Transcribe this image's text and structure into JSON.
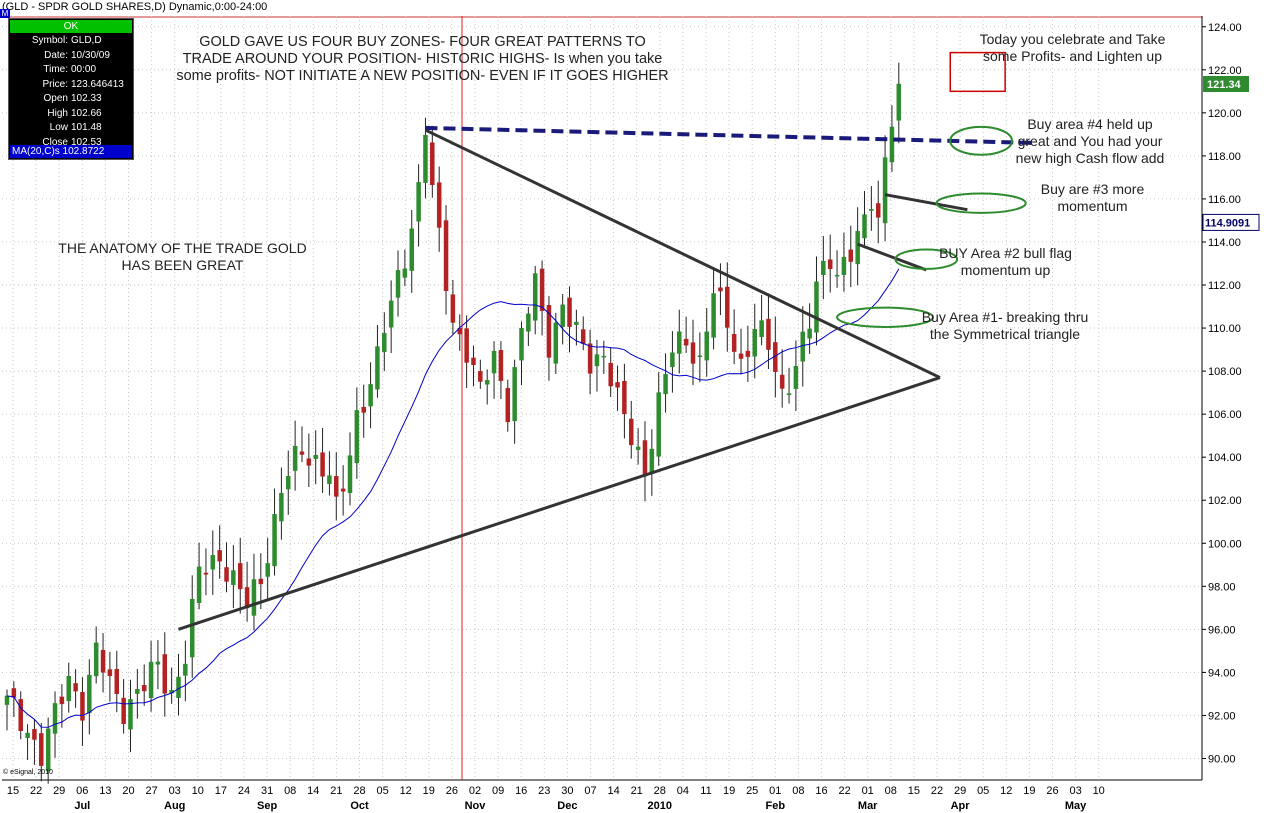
{
  "window": {
    "title": "(GLD - SPDR GOLD SHARES,D) Dynamic,0:00-24:00",
    "corner_label": "M",
    "copyright": "© eSignal, 2010"
  },
  "info_box": {
    "status": "OK",
    "rows": [
      {
        "label": "Symbol:",
        "value": "GLD,D"
      },
      {
        "label": "Date:",
        "value": "10/30/09"
      },
      {
        "label": "Time:",
        "value": "00:00"
      },
      {
        "label": "Price:",
        "value": "123.646413"
      },
      {
        "label": "Open",
        "value": "102.33"
      },
      {
        "label": "High",
        "value": "102.66"
      },
      {
        "label": "Low",
        "value": "101.48"
      },
      {
        "label": "Close",
        "value": "102.53"
      }
    ],
    "ma_label": "MA(20,C)s 102.8722"
  },
  "annotations": {
    "headline": "GOLD GAVE US FOUR BUY ZONES- FOUR GREAT PATTERNS TO\nTRADE AROUND YOUR POSITION- HISTORIC HIGHS- Is when you take\nsome profits- NOT INITIATE A NEW POSITION- EVEN IF IT GOES HIGHER",
    "anatomy": "THE ANATOMY OF THE TRADE GOLD\nHAS BEEN GREAT",
    "today": "Today you celebrate and Take\nsome Profits- and Lighten up",
    "area4": "Buy area #4 held up\ngreat and You had your\nnew high Cash flow add",
    "area3": "Buy are #3 more\nmomentum",
    "area2": "BUY Area #2 bull flag\nmomentum up",
    "area1": "Buy Area #1- breaking thru\nthe Symmetrical triangle"
  },
  "chart_data": {
    "type": "candlestick",
    "title": "(GLD - SPDR GOLD SHARES,D) Dynamic,0:00-24:00",
    "ylim": [
      89,
      124.5
    ],
    "y_ticks": [
      "124.00",
      "122.00",
      "120.00",
      "118.00",
      "116.00",
      "114.00",
      "112.00",
      "110.00",
      "108.00",
      "106.00",
      "104.00",
      "102.00",
      "100.00",
      "98.00",
      "96.00",
      "94.00",
      "92.00",
      "90.00"
    ],
    "price_labels": {
      "last": "121.34",
      "ma": "114.9091",
      "last_value": 121.34,
      "ma_value": 114.9091
    },
    "colors": {
      "up": "#2e8b2e",
      "down": "#b22222",
      "ma": "#0000cc",
      "trendline": "#333333",
      "resistance": "#1a1a7a",
      "ellipse": "#2e8b2e",
      "highlight": "#cc0000"
    },
    "day_ticks": [
      "15",
      "22",
      "29",
      "06",
      "13",
      "20",
      "27",
      "03",
      "10",
      "17",
      "24",
      "31",
      "08",
      "14",
      "21",
      "28",
      "05",
      "12",
      "19",
      "26",
      "02",
      "09",
      "16",
      "23",
      "30",
      "07",
      "14",
      "21",
      "28",
      "04",
      "11",
      "19",
      "25",
      "01",
      "08",
      "16",
      "22",
      "01",
      "08",
      "15",
      "22",
      "29",
      "05",
      "12",
      "19",
      "26",
      "03",
      "10"
    ],
    "month_labels": [
      {
        "label": "Jul",
        "tick": 3
      },
      {
        "label": "Aug",
        "tick": 7
      },
      {
        "label": "Sep",
        "tick": 11
      },
      {
        "label": "Oct",
        "tick": 15
      },
      {
        "label": "Nov",
        "tick": 20
      },
      {
        "label": "Dec",
        "tick": 24
      },
      {
        "label": "2010",
        "tick": 28
      },
      {
        "label": "Feb",
        "tick": 33
      },
      {
        "label": "Mar",
        "tick": 37
      },
      {
        "label": "Apr",
        "tick": 41
      },
      {
        "label": "May",
        "tick": 46
      }
    ],
    "date_marker_tick": 20,
    "anchors": [
      [
        0,
        92.5
      ],
      [
        3,
        91.5
      ],
      [
        5,
        90.2
      ],
      [
        7,
        91.8
      ],
      [
        9,
        93.8
      ],
      [
        11,
        92.6
      ],
      [
        13,
        94.8
      ],
      [
        15,
        93.4
      ],
      [
        17,
        92.5
      ],
      [
        20,
        93.3
      ],
      [
        22,
        94.2
      ],
      [
        24,
        93.2
      ],
      [
        26,
        94.8
      ],
      [
        28,
        98.5
      ],
      [
        31,
        99.6
      ],
      [
        33,
        98.2
      ],
      [
        35,
        97.0
      ],
      [
        37,
        98.5
      ],
      [
        40,
        102.4
      ],
      [
        43,
        104.3
      ],
      [
        45,
        104.0
      ],
      [
        47,
        103.2
      ],
      [
        48,
        101.3
      ],
      [
        49,
        102.4
      ],
      [
        51,
        106.0
      ],
      [
        54,
        108.5
      ],
      [
        56,
        111.0
      ],
      [
        58,
        113.5
      ],
      [
        60,
        116.5
      ],
      [
        61,
        119.2
      ],
      [
        62,
        116.2
      ],
      [
        63,
        114.0
      ],
      [
        65,
        110.5
      ],
      [
        67,
        109.0
      ],
      [
        69,
        106.8
      ],
      [
        71,
        108.8
      ],
      [
        73,
        106.5
      ],
      [
        75,
        109.5
      ],
      [
        77,
        112.0
      ],
      [
        79,
        109.5
      ],
      [
        81,
        111.0
      ],
      [
        83,
        109.5
      ],
      [
        85,
        108.5
      ],
      [
        87,
        109.0
      ],
      [
        89,
        106.5
      ],
      [
        91,
        104.8
      ],
      [
        93,
        103.6
      ],
      [
        95,
        106.5
      ],
      [
        97,
        108.8
      ],
      [
        99,
        109.6
      ],
      [
        101,
        108.5
      ],
      [
        103,
        111.5
      ],
      [
        105,
        110.2
      ],
      [
        107,
        108.5
      ],
      [
        109,
        110.0
      ],
      [
        111,
        109.0
      ],
      [
        113,
        107.0
      ],
      [
        115,
        108.5
      ],
      [
        117,
        110.0
      ],
      [
        118,
        111.8
      ],
      [
        120,
        113.5
      ],
      [
        121,
        112.8
      ],
      [
        123,
        113.4
      ],
      [
        125,
        114.6
      ],
      [
        126,
        116.0
      ],
      [
        127,
        115.3
      ],
      [
        128,
        118.0
      ],
      [
        129,
        120.0
      ],
      [
        130,
        121.34
      ]
    ],
    "candle_count": 131,
    "ma_period": 20,
    "trendlines": [
      {
        "from": [
          61,
          119.2
        ],
        "to": [
          136,
          107.7
        ]
      },
      {
        "from": [
          25,
          96.0
        ],
        "to": [
          136,
          107.7
        ]
      },
      {
        "from": [
          124,
          113.9
        ],
        "to": [
          134,
          112.7
        ]
      },
      {
        "from": [
          128,
          116.2
        ],
        "to": [
          140,
          115.5
        ]
      }
    ],
    "resistance": {
      "from": [
        61,
        119.3
      ],
      "to": [
        150,
        118.6
      ]
    },
    "ellipses": [
      {
        "center": [
          128,
          110.5
        ],
        "rx_days": 7,
        "ry_price": 0.45
      },
      {
        "center": [
          134,
          113.2
        ],
        "rx_days": 4.5,
        "ry_price": 0.45
      },
      {
        "center": [
          142,
          115.8
        ],
        "rx_days": 6.5,
        "ry_price": 0.45
      },
      {
        "center": [
          142,
          118.7
        ],
        "rx_days": 4.5,
        "ry_price": 0.65
      }
    ],
    "highlight_box": {
      "x0": 137.5,
      "x1": 145.5,
      "y0": 122.8,
      "y1": 121.0
    }
  }
}
